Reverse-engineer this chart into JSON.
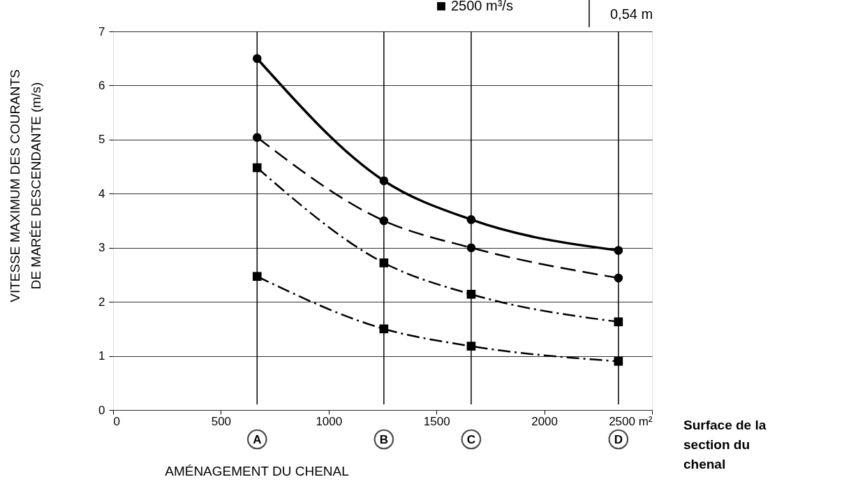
{
  "chart_data": {
    "type": "line",
    "xlabel": "AMÉNAGEMENT DU CHENAL",
    "ylabel": "VITESSE MAXIMUM DES COURANTS\nDE MARÉE DESCENDANTE (m/s)",
    "x": [
      668,
      1256,
      1661,
      2344
    ],
    "series": [
      {
        "color": "#000000",
        "marker": "circle",
        "line_style": "solid",
        "values": [
          6.5,
          4.24,
          3.52,
          2.95
        ]
      },
      {
        "color": "#000000",
        "marker": "circle",
        "line_style": "dashed",
        "values": [
          5.04,
          3.5,
          3.0,
          2.44
        ]
      },
      {
        "name": "2500 m³/s",
        "color": "#000000",
        "marker": "square",
        "line_style": "dashdot",
        "values": [
          4.48,
          2.72,
          2.14,
          1.63
        ]
      },
      {
        "color": "#000000",
        "marker": "square",
        "line_style": "dashdot",
        "values": [
          2.47,
          1.5,
          1.18,
          0.9
        ]
      }
    ],
    "xlim": [
      0,
      2500
    ],
    "xticks": [
      0,
      500,
      1000,
      1500,
      2000,
      {
        "value": 2500,
        "label": "2500 m²"
      }
    ],
    "ylim": [
      0,
      7
    ],
    "yticks": [
      0,
      1,
      2,
      3,
      4,
      5,
      6,
      7
    ],
    "grid": "y",
    "legend": "top",
    "ref_lines": [
      {
        "axis": "x",
        "value": 668,
        "label": "A"
      },
      {
        "axis": "x",
        "value": 1256,
        "label": "B"
      },
      {
        "axis": "x",
        "value": 1661,
        "label": "C"
      },
      {
        "axis": "x",
        "value": 2344,
        "label": "D"
      }
    ],
    "annotations": [
      "0,54 m",
      "Surface de la\nsection du\nchenal"
    ]
  }
}
